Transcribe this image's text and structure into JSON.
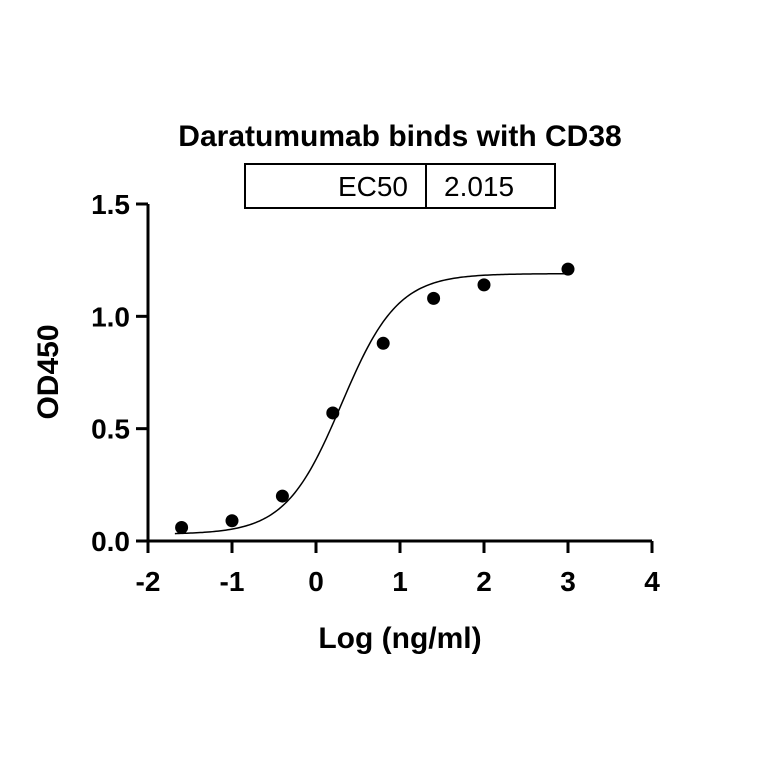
{
  "chart_data": {
    "type": "scatter",
    "title": "Daratumumab binds with CD38",
    "xlabel": "Log (ng/ml)",
    "ylabel": "OD450",
    "xlim": [
      -2,
      4
    ],
    "ylim": [
      0,
      1.5
    ],
    "xticks": [
      "-2",
      "-1",
      "0",
      "1",
      "2",
      "3",
      "4"
    ],
    "yticks": [
      "0.0",
      "0.5",
      "1.0",
      "1.5"
    ],
    "grid": false,
    "points": {
      "x": [
        -1.6,
        -1.0,
        -0.4,
        0.2,
        0.8,
        1.4,
        2.0,
        3.0
      ],
      "y": [
        0.06,
        0.09,
        0.2,
        0.57,
        0.88,
        1.08,
        1.14,
        1.21
      ]
    },
    "fit": {
      "model": "4PL",
      "bottom": 0.03,
      "top": 1.19,
      "logEC50": 0.304,
      "hill": 1.3
    },
    "table": {
      "label": "EC50",
      "value": "2.015"
    },
    "colors": {
      "points": "#000000",
      "line": "#000000"
    }
  }
}
